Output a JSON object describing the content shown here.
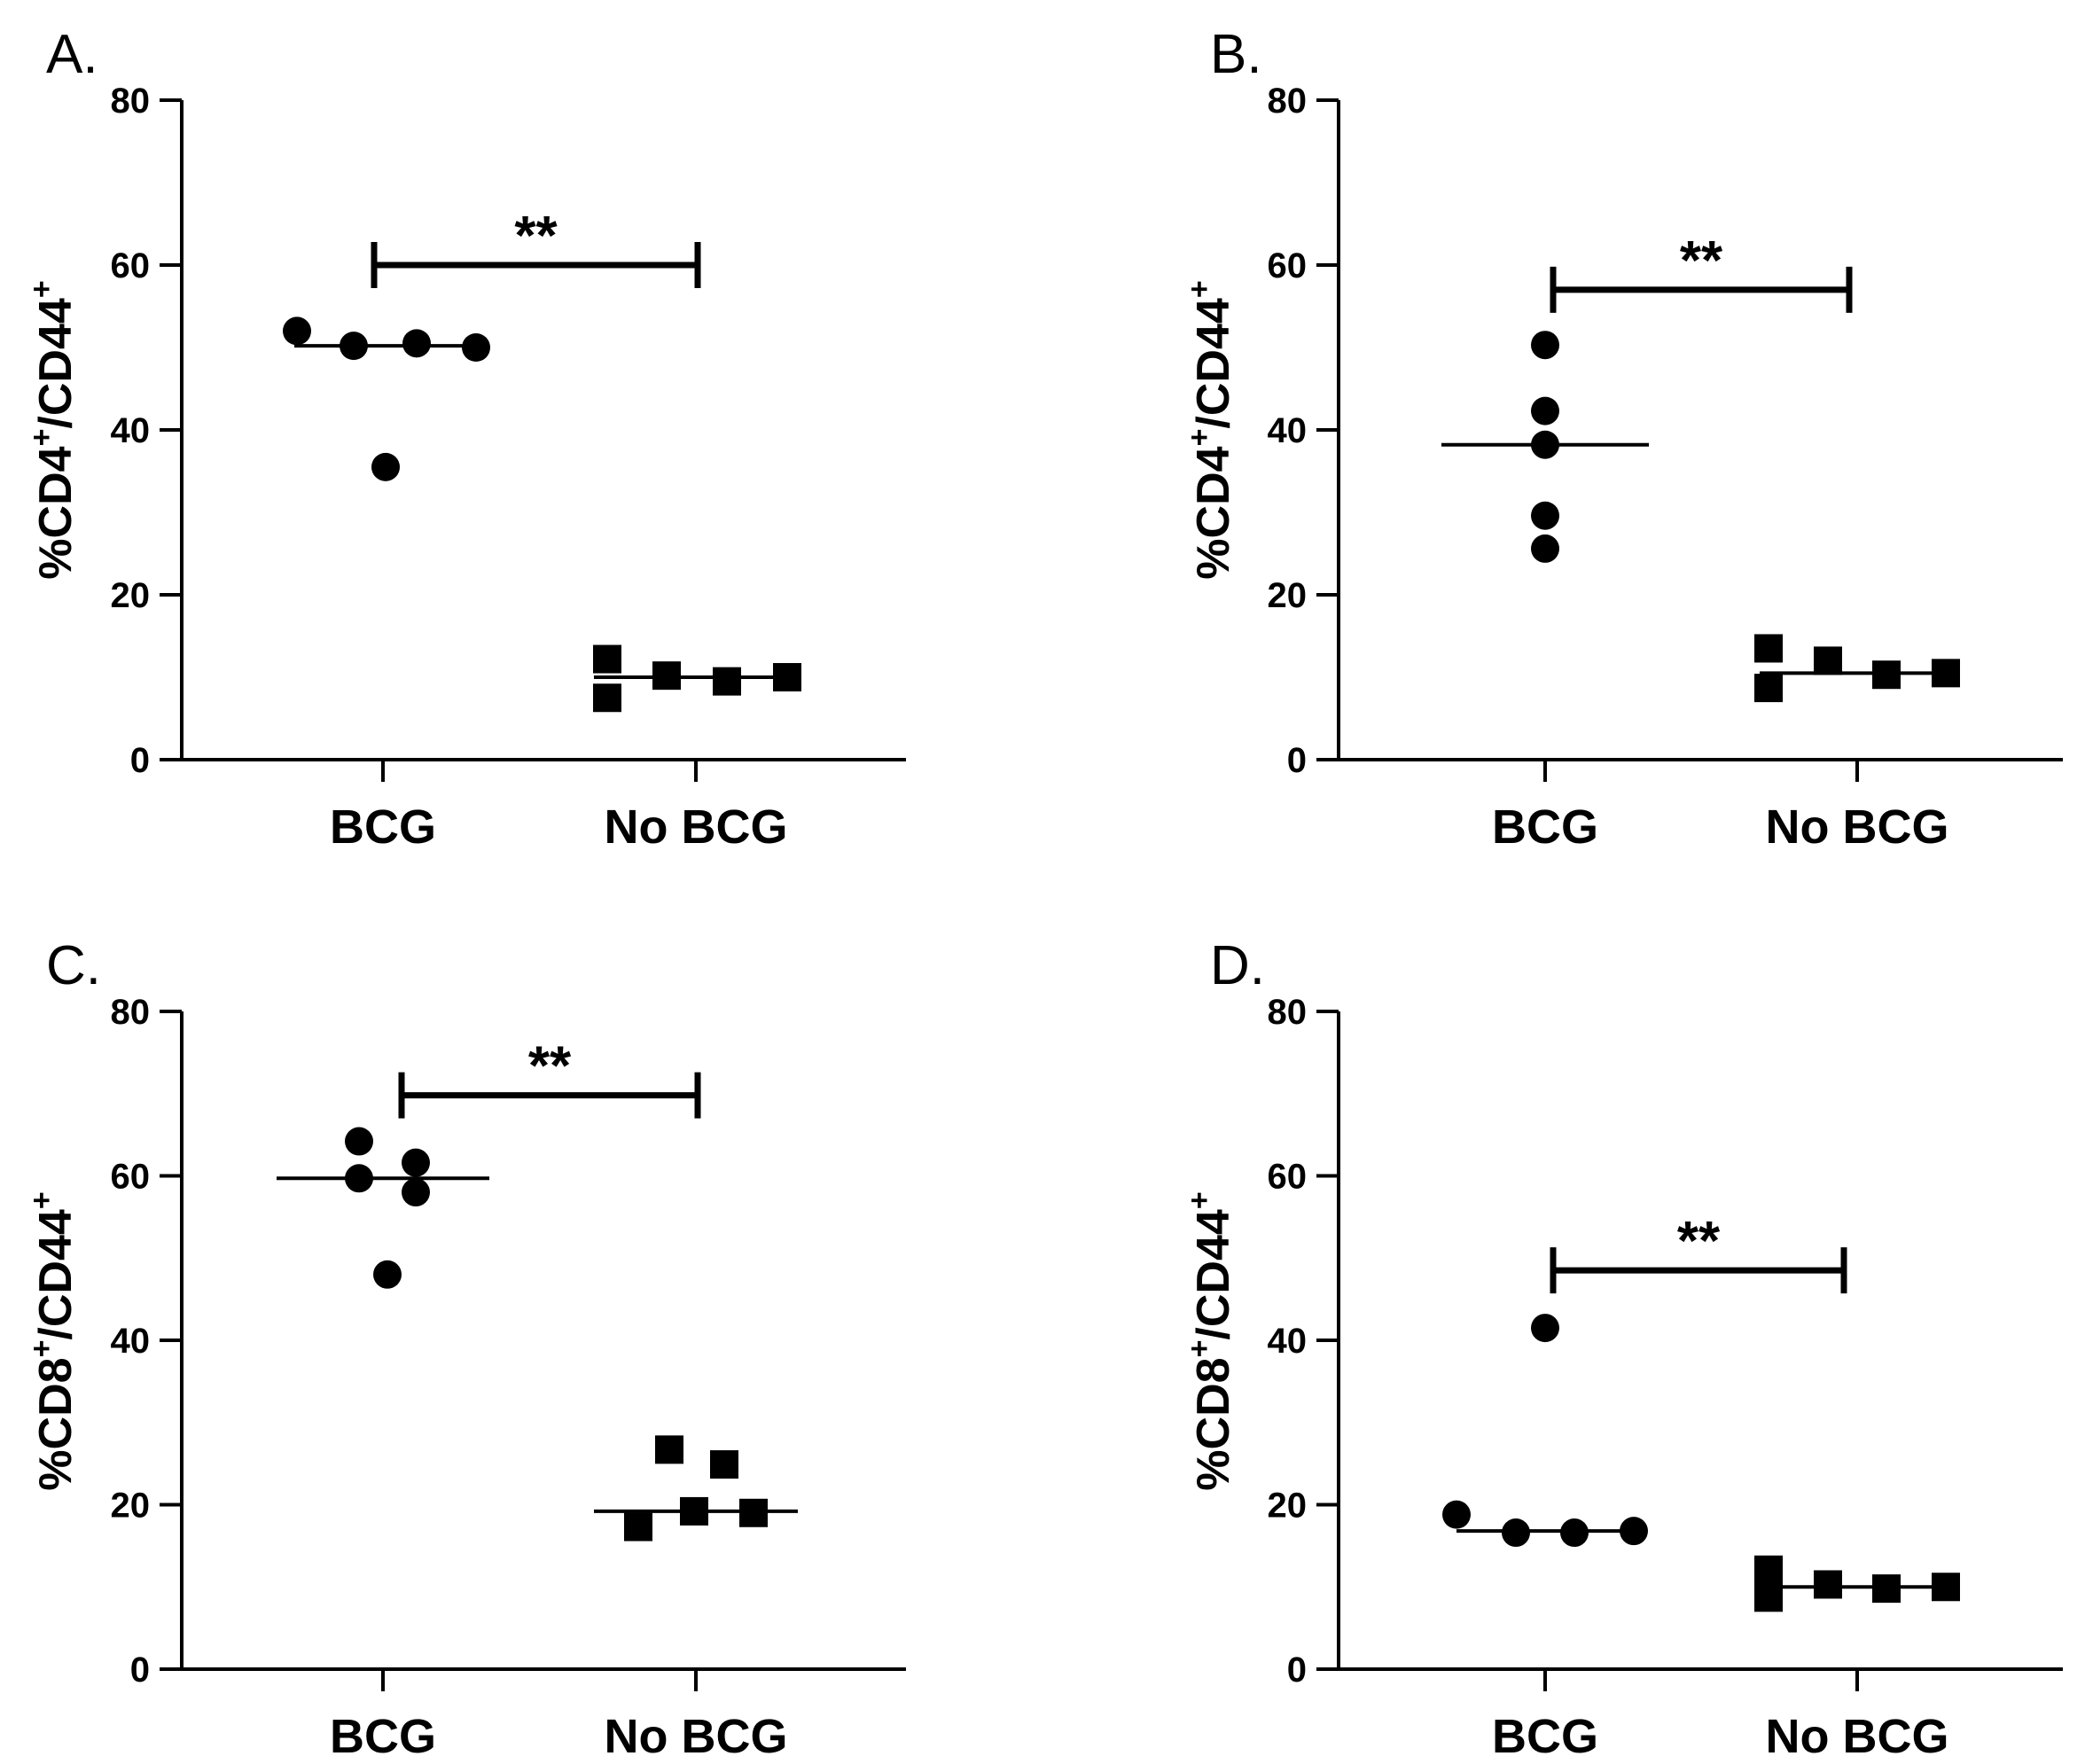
{
  "chart_data": [
    {
      "panel": "A.",
      "type": "scatter",
      "ylabel": {
        "prefix": "%CD4",
        "sup1": "+",
        "mid": "/CD44",
        "sup2": "+"
      },
      "ylim": [
        0,
        80
      ],
      "yticks": [
        0,
        20,
        40,
        60,
        80
      ],
      "categories": [
        "BCG",
        "No BCG"
      ],
      "series": [
        {
          "name": "BCG",
          "marker": "circle",
          "values": [
            52.0,
            50.2,
            50.5,
            50.0,
            35.5
          ],
          "median": 50.2
        },
        {
          "name": "No BCG",
          "marker": "square",
          "values": [
            12.2,
            7.5,
            10.2,
            9.5,
            10.0
          ],
          "median": 10.0
        }
      ],
      "significance": {
        "label": "**",
        "y": 60.0
      }
    },
    {
      "panel": "B.",
      "type": "scatter",
      "ylabel": {
        "prefix": "%CD4",
        "sup1": "+",
        "mid": "/CD44",
        "sup2": "+"
      },
      "ylim": [
        0,
        80
      ],
      "yticks": [
        0,
        20,
        40,
        60,
        80
      ],
      "categories": [
        "BCG",
        "No BCG"
      ],
      "series": [
        {
          "name": "BCG",
          "marker": "circle",
          "values": [
            50.3,
            42.3,
            38.2,
            29.6,
            25.6
          ],
          "median": 38.2
        },
        {
          "name": "No BCG",
          "marker": "square",
          "values": [
            13.5,
            8.7,
            12.0,
            10.3,
            10.5
          ],
          "median": 10.5
        }
      ],
      "significance": {
        "label": "**",
        "y": 57.0
      }
    },
    {
      "panel": "C.",
      "type": "scatter",
      "ylabel": {
        "prefix": "%CD8",
        "sup1": "+",
        "mid": "/CD44",
        "sup2": "+"
      },
      "ylim": [
        0,
        80
      ],
      "yticks": [
        0,
        20,
        40,
        60,
        80
      ],
      "categories": [
        "BCG",
        "No BCG"
      ],
      "series": [
        {
          "name": "BCG",
          "marker": "circle",
          "values": [
            64.2,
            59.7,
            61.6,
            58.0,
            48.0
          ],
          "median": 59.7
        },
        {
          "name": "No BCG",
          "marker": "square",
          "values": [
            26.7,
            24.9,
            19.2,
            19.0,
            17.3
          ],
          "median": 19.2
        }
      ],
      "significance": {
        "label": "**",
        "y": 69.8
      }
    },
    {
      "panel": "D.",
      "type": "scatter",
      "ylabel": {
        "prefix": "%CD8",
        "sup1": "+",
        "mid": "/CD44",
        "sup2": "+"
      },
      "ylim": [
        0,
        80
      ],
      "yticks": [
        0,
        20,
        40,
        60,
        80
      ],
      "categories": [
        "BCG",
        "No BCG"
      ],
      "series": [
        {
          "name": "BCG",
          "marker": "circle",
          "values": [
            41.5,
            18.8,
            16.6,
            16.6,
            16.8
          ],
          "median": 16.8
        },
        {
          "name": "No BCG",
          "marker": "square",
          "values": [
            12.1,
            8.7,
            10.3,
            9.8,
            10.0
          ],
          "median": 10.0
        }
      ],
      "significance": {
        "label": "**",
        "y": 48.5
      }
    }
  ]
}
